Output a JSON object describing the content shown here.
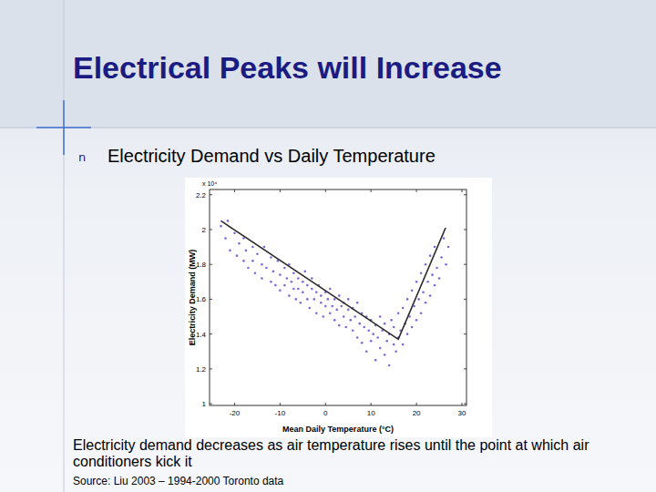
{
  "slide": {
    "title": "Electrical Peaks will Increase",
    "bullet_marker": "n",
    "bullet": "Electricity Demand vs Daily Temperature",
    "caption": "Electricity demand decreases as air temperature rises until the point at which air conditioners kick it",
    "source": "Source: Liu 2003 – 1994-2000 Toronto data"
  },
  "chart_data": {
    "type": "scatter",
    "xlabel": "Mean Daily Temperature (°C)",
    "ylabel": "Electricity Demand (MW)",
    "y_multiplier": "x 10⁴",
    "xlim": [
      -25.5,
      31
    ],
    "xticks": [
      -20,
      -10,
      0,
      10,
      20,
      30
    ],
    "ylim": [
      0.99,
      2.23
    ],
    "yticks": [
      1,
      1.2,
      1.4,
      1.6,
      1.8,
      2,
      2.2
    ],
    "grid": false,
    "series": [
      {
        "type": "scatter",
        "color": "#8466d8",
        "marker": "dot",
        "x": [
          -23,
          -22,
          -21.5,
          -21,
          -20,
          -19.5,
          -19,
          -18,
          -18,
          -17.5,
          -17,
          -16,
          -16,
          -15.5,
          -15,
          -14,
          -14,
          -13.5,
          -13,
          -12,
          -12,
          -11.5,
          -11,
          -10.5,
          -10,
          -10,
          -9,
          -9,
          -8.5,
          -8,
          -8,
          -7.5,
          -7,
          -7,
          -6.5,
          -6,
          -6,
          -5.5,
          -5,
          -5,
          -4.5,
          -4,
          -4,
          -3.5,
          -3,
          -3,
          -2.5,
          -2,
          -2,
          -1.5,
          -1,
          -1,
          -0.5,
          0,
          0,
          0.5,
          1,
          1,
          1.5,
          2,
          2,
          2.5,
          3,
          3,
          3.5,
          4,
          4,
          4.5,
          5,
          5,
          5.5,
          6,
          6,
          6.5,
          7,
          7,
          7.5,
          8,
          8,
          8.5,
          9,
          9,
          9.5,
          10,
          10,
          10.5,
          11,
          11,
          11.5,
          12,
          12,
          12.5,
          13,
          13,
          13.5,
          14,
          14,
          14.5,
          15,
          15,
          15.5,
          16,
          16,
          16.5,
          17,
          17,
          17.5,
          18,
          18,
          18.5,
          19,
          19,
          19.5,
          20,
          20,
          20.5,
          21,
          21,
          21.5,
          22,
          22,
          22.5,
          23,
          23,
          23.5,
          24,
          24,
          24.5,
          25,
          25.5,
          26,
          26.5,
          27
        ],
        "values": [
          2.02,
          1.95,
          2.05,
          1.88,
          1.98,
          1.85,
          1.92,
          1.95,
          1.82,
          1.88,
          1.78,
          1.9,
          1.82,
          1.75,
          1.86,
          1.8,
          1.72,
          1.9,
          1.78,
          1.84,
          1.7,
          1.76,
          1.68,
          1.82,
          1.74,
          1.65,
          1.78,
          1.68,
          1.72,
          1.62,
          1.8,
          1.7,
          1.66,
          1.75,
          1.6,
          1.72,
          1.66,
          1.58,
          1.7,
          1.64,
          1.76,
          1.6,
          1.68,
          1.55,
          1.66,
          1.72,
          1.6,
          1.64,
          1.52,
          1.68,
          1.58,
          1.62,
          1.5,
          1.64,
          1.56,
          1.6,
          1.52,
          1.66,
          1.56,
          1.48,
          1.6,
          1.54,
          1.62,
          1.45,
          1.56,
          1.5,
          1.58,
          1.44,
          1.54,
          1.6,
          1.48,
          1.42,
          1.55,
          1.5,
          1.38,
          1.58,
          1.46,
          1.52,
          1.35,
          1.44,
          1.5,
          1.3,
          1.42,
          1.48,
          1.36,
          1.4,
          1.25,
          1.45,
          1.38,
          1.32,
          1.5,
          1.42,
          1.28,
          1.46,
          1.36,
          1.22,
          1.4,
          1.48,
          1.34,
          1.44,
          1.3,
          1.38,
          1.52,
          1.42,
          1.34,
          1.55,
          1.46,
          1.4,
          1.6,
          1.5,
          1.44,
          1.65,
          1.56,
          1.48,
          1.7,
          1.6,
          1.52,
          1.75,
          1.64,
          1.58,
          1.8,
          1.7,
          1.62,
          1.85,
          1.74,
          1.68,
          1.9,
          1.78,
          1.72,
          1.84,
          1.95,
          1.8,
          1.9
        ]
      },
      {
        "type": "line",
        "color": "#2b2b2b",
        "line_style": "solid",
        "x": [
          -23,
          16,
          26.4
        ],
        "values": [
          2.05,
          1.37,
          2.01
        ]
      }
    ]
  }
}
